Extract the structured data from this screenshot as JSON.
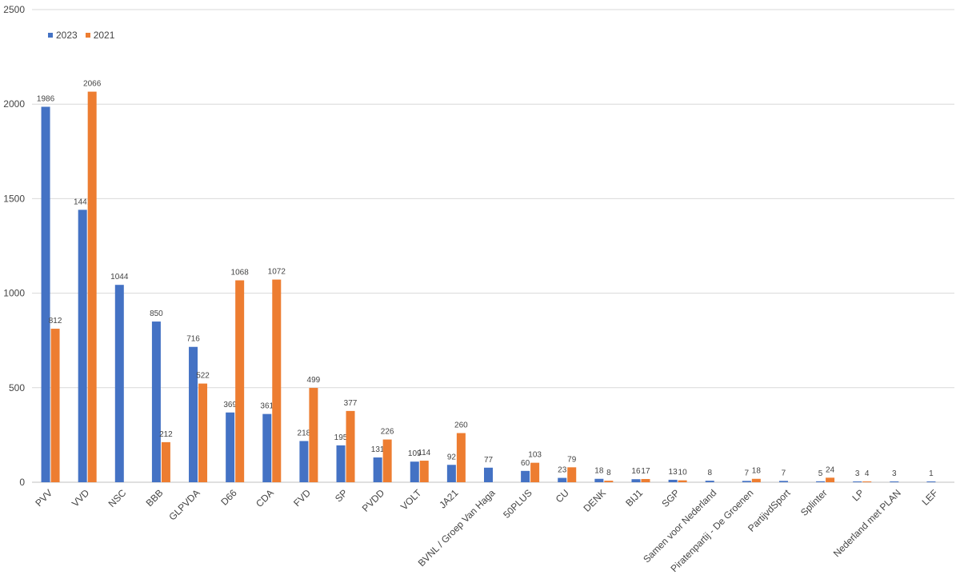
{
  "chart_data": {
    "type": "bar",
    "title": "",
    "xlabel": "",
    "ylabel": "",
    "ylim": [
      0,
      2500
    ],
    "yticks": [
      0,
      500,
      1000,
      1500,
      2000,
      2500
    ],
    "grid": true,
    "legend_position": "top-left",
    "categories": [
      "PVV",
      "VVD",
      "NSC",
      "BBB",
      "GLPVDA",
      "D66",
      "CDA",
      "FVD",
      "SP",
      "PVDD",
      "VOLT",
      "JA21",
      "BVNL / Groep Van Haga",
      "50PLUS",
      "CU",
      "DENK",
      "BIJ1",
      "SGP",
      "Samen voor Nederland",
      "Piratenpartij - De Groenen",
      "PartijvdSport",
      "Splinter",
      "LP",
      "Nederland met PLAN",
      "LEF"
    ],
    "series": [
      {
        "name": "2023",
        "color": "#4472C4",
        "values": [
          1986,
          1441,
          1044,
          850,
          716,
          369,
          361,
          218,
          195,
          131,
          109,
          92,
          77,
          60,
          23,
          18,
          16,
          13,
          8,
          7,
          7,
          5,
          3,
          3,
          1
        ]
      },
      {
        "name": "2021",
        "color": "#ED7D31",
        "values": [
          812,
          2066,
          null,
          212,
          522,
          1068,
          1072,
          499,
          377,
          226,
          114,
          260,
          null,
          103,
          79,
          8,
          17,
          10,
          null,
          18,
          null,
          24,
          4,
          null,
          null
        ]
      }
    ]
  }
}
